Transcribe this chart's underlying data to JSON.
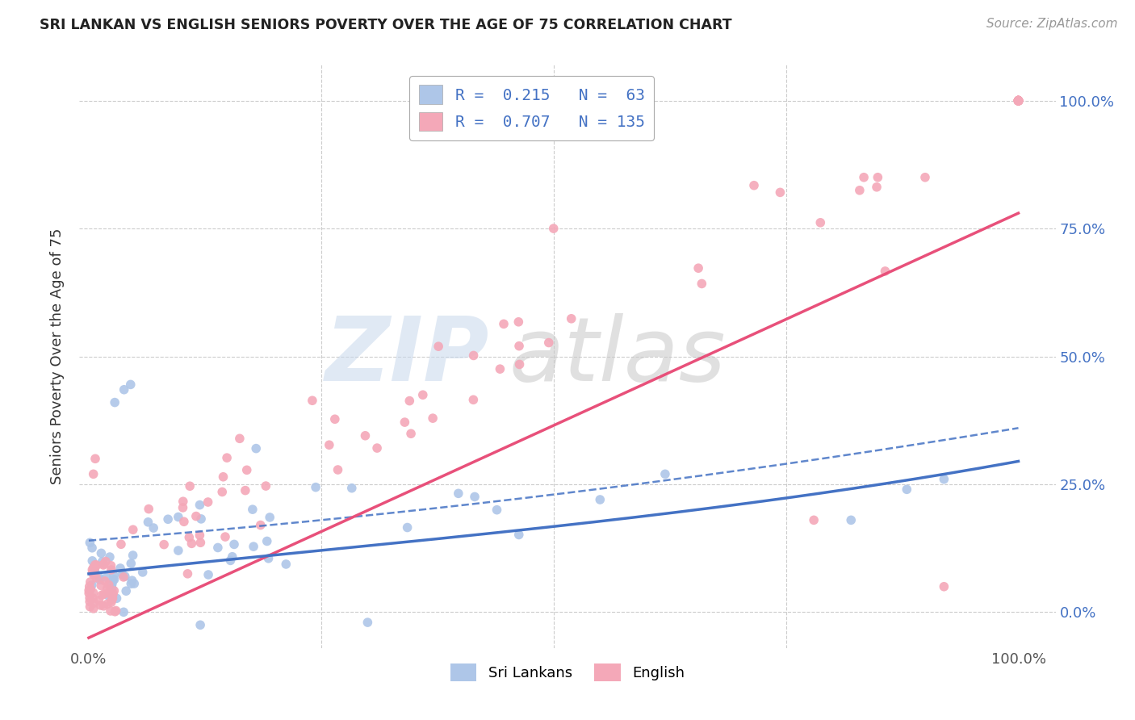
{
  "title": "SRI LANKAN VS ENGLISH SENIORS POVERTY OVER THE AGE OF 75 CORRELATION CHART",
  "source": "Source: ZipAtlas.com",
  "ylabel": "Seniors Poverty Over the Age of 75",
  "sri_lankan_color": "#aec6e8",
  "english_color": "#f4a8b8",
  "sri_lankan_line_color": "#4472c4",
  "english_line_color": "#e8507a",
  "R_sri": 0.215,
  "N_sri": 63,
  "R_eng": 0.707,
  "N_eng": 135,
  "background_color": "#ffffff",
  "grid_color": "#cccccc",
  "right_tick_color": "#4472c4",
  "title_color": "#222222",
  "source_color": "#999999"
}
